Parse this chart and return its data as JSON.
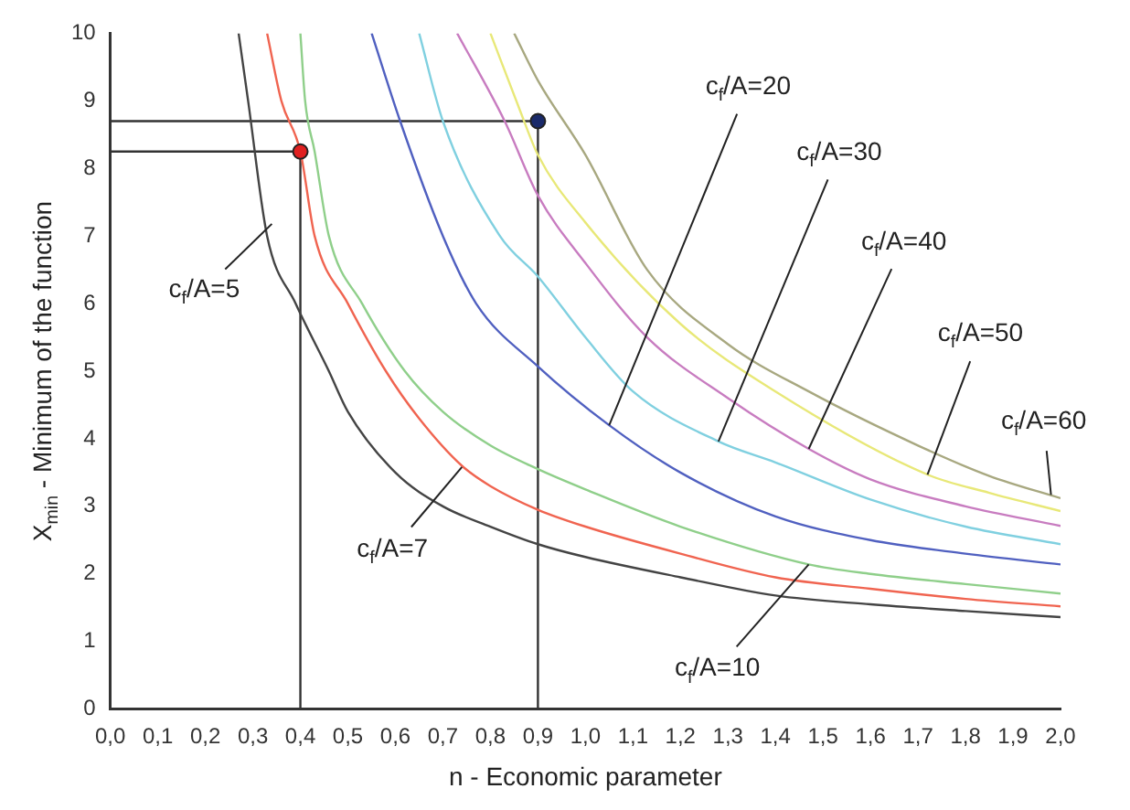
{
  "chart_data": {
    "type": "line",
    "xlabel": "n - Economic parameter",
    "ylabel": "X$_{min}$ - Minimum of the function",
    "xlim": [
      0,
      2
    ],
    "ylim": [
      0,
      10
    ],
    "marker": "none",
    "xticks": [
      {
        "value": 0,
        "label": "0,0"
      },
      {
        "value": 0.1,
        "label": "0,1"
      },
      {
        "value": 0.2,
        "label": "0,2"
      },
      {
        "value": 0.3,
        "label": "0,3"
      },
      {
        "value": 0.4,
        "label": "0,4"
      },
      {
        "value": 0.5,
        "label": "0,5"
      },
      {
        "value": 0.6,
        "label": "0,6"
      },
      {
        "value": 0.7,
        "label": "0,7"
      },
      {
        "value": 0.8,
        "label": "0,8"
      },
      {
        "value": 0.9,
        "label": "0,9"
      },
      {
        "value": 1.0,
        "label": "1,0"
      },
      {
        "value": 1.1,
        "label": "1,1"
      },
      {
        "value": 1.2,
        "label": "1,2"
      },
      {
        "value": 1.3,
        "label": "1,3"
      },
      {
        "value": 1.4,
        "label": "1,4"
      },
      {
        "value": 1.5,
        "label": "1,5"
      },
      {
        "value": 1.6,
        "label": "1,6"
      },
      {
        "value": 1.7,
        "label": "1,7"
      },
      {
        "value": 1.8,
        "label": "1,8"
      },
      {
        "value": 1.9,
        "label": "1,9"
      },
      {
        "value": 2.0,
        "label": "2,0"
      }
    ],
    "yticks": [
      0,
      1,
      2,
      3,
      4,
      5,
      6,
      7,
      8,
      9,
      10
    ],
    "series": [
      {
        "color": "#444444",
        "x": [
          0.27,
          0.29,
          0.33,
          0.39,
          0.46,
          0.5,
          0.6,
          0.7,
          0.8,
          0.9,
          1.0,
          1.2,
          1.4,
          1.6,
          1.8,
          2.0
        ],
        "values": [
          10,
          9,
          7,
          6,
          5,
          4.4,
          3.5,
          3.0,
          2.7,
          2.44,
          2.25,
          1.95,
          1.68,
          1.55,
          1.45,
          1.36
        ]
      },
      {
        "color": "#f06450",
        "x": [
          0.33,
          0.36,
          0.4,
          0.43,
          0.5,
          0.58,
          0.65,
          0.74,
          0.8,
          0.9,
          1.0,
          1.2,
          1.4,
          1.6,
          1.8,
          2.0
        ],
        "values": [
          10,
          9,
          8.25,
          7,
          6,
          5,
          4.3,
          3.6,
          3.3,
          2.95,
          2.7,
          2.3,
          1.95,
          1.78,
          1.63,
          1.52
        ]
      },
      {
        "color": "#8fcf8a",
        "x": [
          0.4,
          0.41,
          0.43,
          0.46,
          0.53,
          0.62,
          0.7,
          0.8,
          0.9,
          1.0,
          1.2,
          1.47,
          1.6,
          1.8,
          2.0
        ],
        "values": [
          10,
          9,
          8.25,
          7,
          6,
          5,
          4.4,
          3.9,
          3.55,
          3.25,
          2.7,
          2.14,
          2.0,
          1.85,
          1.71
        ]
      },
      {
        "color": "#5060c0",
        "x": [
          0.55,
          0.61,
          0.7,
          0.77,
          0.9,
          1.05,
          1.2,
          1.4,
          1.6,
          1.8,
          2.0
        ],
        "values": [
          10,
          8.7,
          7,
          6,
          5.07,
          4.2,
          3.5,
          2.85,
          2.5,
          2.3,
          2.14
        ]
      },
      {
        "color": "#80d0e0",
        "x": [
          0.65,
          0.7,
          0.82,
          0.9,
          1.0,
          1.1,
          1.28,
          1.4,
          1.6,
          1.8,
          2.0
        ],
        "values": [
          10,
          8.7,
          7,
          6.4,
          5.5,
          4.7,
          3.96,
          3.65,
          3.1,
          2.7,
          2.44
        ]
      },
      {
        "color": "#c87cc0",
        "x": [
          0.73,
          0.83,
          0.9,
          1.0,
          1.13,
          1.3,
          1.47,
          1.6,
          1.8,
          2.0
        ],
        "values": [
          10,
          8.7,
          7.6,
          6.6,
          5.5,
          4.6,
          3.85,
          3.4,
          3.0,
          2.71
        ]
      },
      {
        "color": "#e8e878",
        "x": [
          0.8,
          0.86,
          0.9,
          1.0,
          1.2,
          1.4,
          1.72,
          1.85,
          2.0
        ],
        "values": [
          10,
          8.9,
          8.2,
          7.2,
          5.7,
          4.7,
          3.47,
          3.2,
          2.93
        ]
      },
      {
        "color": "#a8a880",
        "x": [
          0.85,
          0.9,
          1.0,
          1.13,
          1.3,
          1.47,
          1.7,
          1.85,
          2.0
        ],
        "values": [
          10,
          9.3,
          8.2,
          6.5,
          5.4,
          4.7,
          3.9,
          3.45,
          3.12
        ]
      },
      {
        "color": "#333333",
        "x": [
          0,
          0.4,
          0.4
        ],
        "values": [
          8.25,
          8.25,
          0
        ]
      },
      {
        "color": "#333333",
        "x": [
          0,
          0.9,
          0.9
        ],
        "values": [
          8.7,
          8.7,
          0
        ]
      },
      {
        "type": "scatter",
        "marker": "circle",
        "color": "#e02020",
        "x": [
          0.4
        ],
        "values": [
          8.25
        ]
      },
      {
        "type": "scatter",
        "marker": "circle",
        "color": "#1a2a6a",
        "x": [
          0.9
        ],
        "values": [
          8.7
        ]
      }
    ],
    "annotations": [
      {
        "text": "c$_{f}$/A=5",
        "x": 0.34,
        "y": 7.18
      },
      {
        "text": "c$_{f}$/A=7",
        "x": 0.74,
        "y": 3.58
      },
      {
        "text": "c$_{f}$/A=10",
        "x": 1.47,
        "y": 2.14
      },
      {
        "text": "c$_{f}$/A=20",
        "x": 1.05,
        "y": 4.2
      },
      {
        "text": "c$_{f}$/A=30",
        "x": 1.28,
        "y": 3.96
      },
      {
        "text": "c$_{f}$/A=40",
        "x": 1.47,
        "y": 3.85
      },
      {
        "text": "c$_{f}$/A=50",
        "x": 1.72,
        "y": 3.47
      },
      {
        "text": "c$_{f}$/A=60",
        "x": 1.98,
        "y": 3.17
      }
    ]
  }
}
